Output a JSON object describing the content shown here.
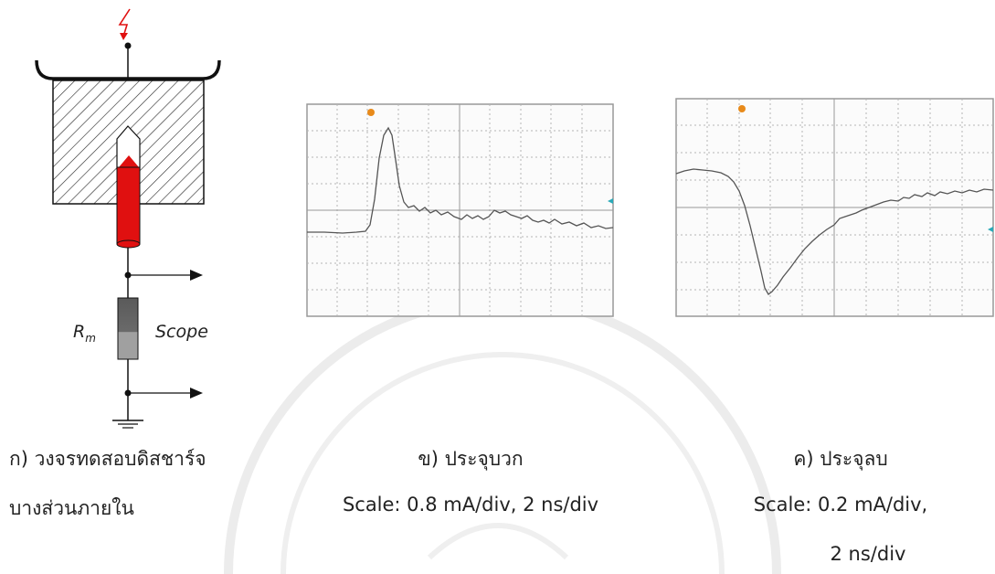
{
  "labels": {
    "resistor": "R",
    "resistor_sub": "m",
    "scope": "Scope"
  },
  "captions": {
    "a_line1": "ก) วงจรทดสอบดิสชาร์จ",
    "a_line2": "บางส่วนภายใน",
    "b_line1": "ข) ประจุบวก",
    "b_line2": "Scale: 0.8 mA/div, 2 ns/div",
    "c_line1": "ค) ประจุลบ",
    "c_line2": "Scale: 0.2 mA/div,",
    "c_line3": "2 ns/div"
  },
  "colors": {
    "electrode_red": "#e01010",
    "resistor_dark": "#606060",
    "resistor_light": "#9a9a9a",
    "grid": "#b0b0b0",
    "trace": "#555555",
    "marker": "#e88a1a",
    "cyan_marker": "#2aa9b8"
  }
}
